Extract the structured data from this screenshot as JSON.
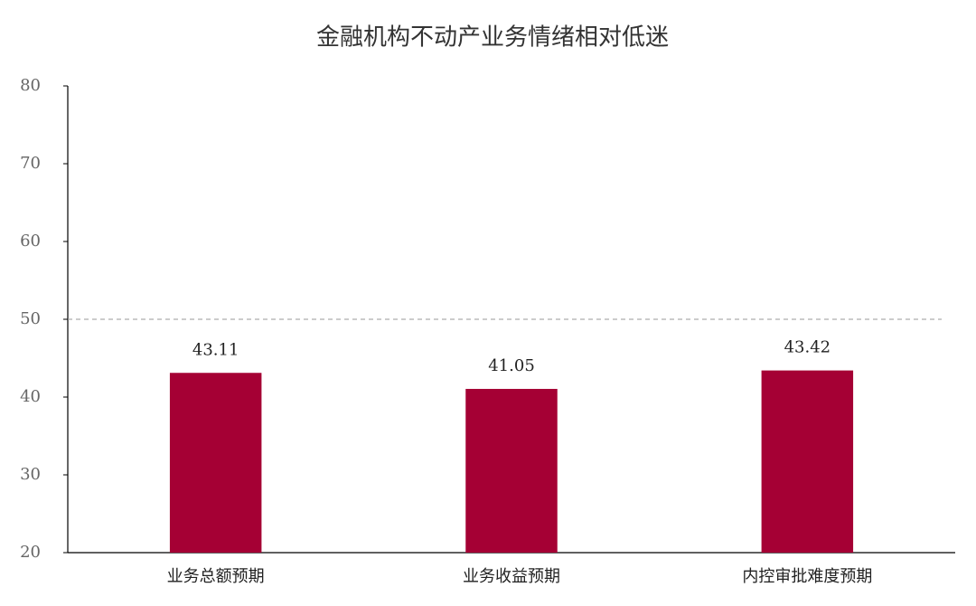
{
  "chart_data": {
    "type": "bar",
    "title": "金融机构不动产业务情绪相对低迷",
    "categories": [
      "业务总额预期",
      "业务收益预期",
      "内控审批难度预期"
    ],
    "values": [
      43.11,
      41.05,
      43.42
    ],
    "color": "#a50034",
    "ylim": [
      20,
      80
    ],
    "yticks": [
      20,
      30,
      40,
      50,
      60,
      70,
      80
    ],
    "grid": false,
    "reference_line": 50
  }
}
